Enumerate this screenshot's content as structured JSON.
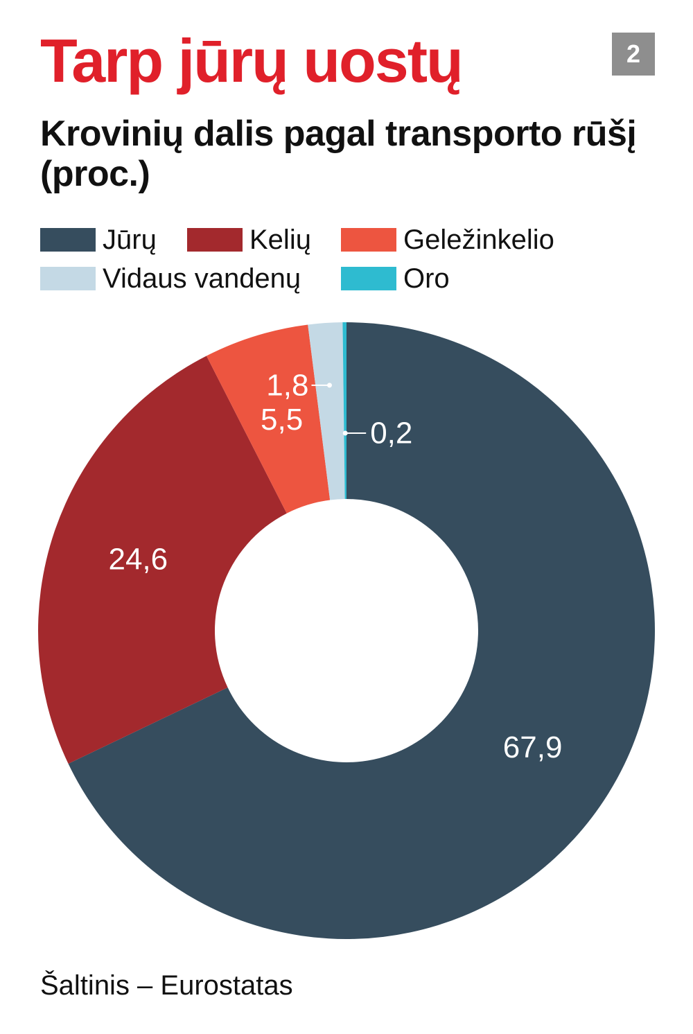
{
  "title": "Tarp jūrų uostų",
  "badge": "2",
  "subtitle": "Krovinių dalis pagal transporto rūšį (proc.)",
  "source": "Šaltinis – Eurostatas",
  "colors": {
    "title": "#e0202a",
    "Jūrų": "#364d5e",
    "Kelių": "#a3292d",
    "Geležinkelio": "#ed5540",
    "Vidaus vandenų": "#c4d9e5",
    "Oro": "#2ebbd0"
  },
  "chart_data": {
    "type": "pie",
    "variant": "donut",
    "start": "top, clockwise",
    "legend_position": "top",
    "slices": [
      {
        "label": "Jūrų",
        "value": 67.9,
        "value_label": "67,9",
        "color": "#364d5e"
      },
      {
        "label": "Kelių",
        "value": 24.6,
        "value_label": "24,6",
        "color": "#a3292d"
      },
      {
        "label": "Geležinkelio",
        "value": 5.5,
        "value_label": "5,5",
        "color": "#ed5540"
      },
      {
        "label": "Vidaus vandenų",
        "value": 1.8,
        "value_label": "1,8",
        "color": "#c4d9e5"
      },
      {
        "label": "Oro",
        "value": 0.2,
        "value_label": "0,2",
        "color": "#2ebbd0"
      }
    ]
  }
}
